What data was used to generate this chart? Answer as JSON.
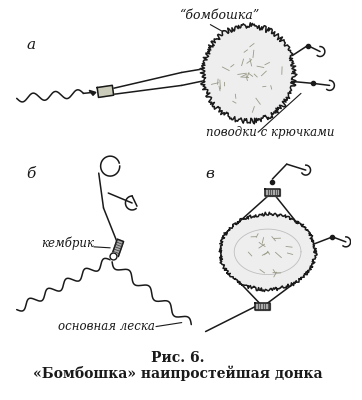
{
  "bg_color": "#ffffff",
  "line_color": "#1a1a1a",
  "title_line1": "Рис. 6.",
  "title_line2": "«Бомбошка» наипростейшая донка",
  "label_a": "а",
  "label_b": "б",
  "label_v": "в",
  "label_bomboshka": "“бомбошка”",
  "label_povodki": "поводки с крючками",
  "label_kembrik": "кембрик",
  "label_leska": "основная леска",
  "title_fontsize": 10,
  "label_fontsize": 8.5,
  "figsize": [
    3.62,
    4.0
  ],
  "dpi": 100
}
